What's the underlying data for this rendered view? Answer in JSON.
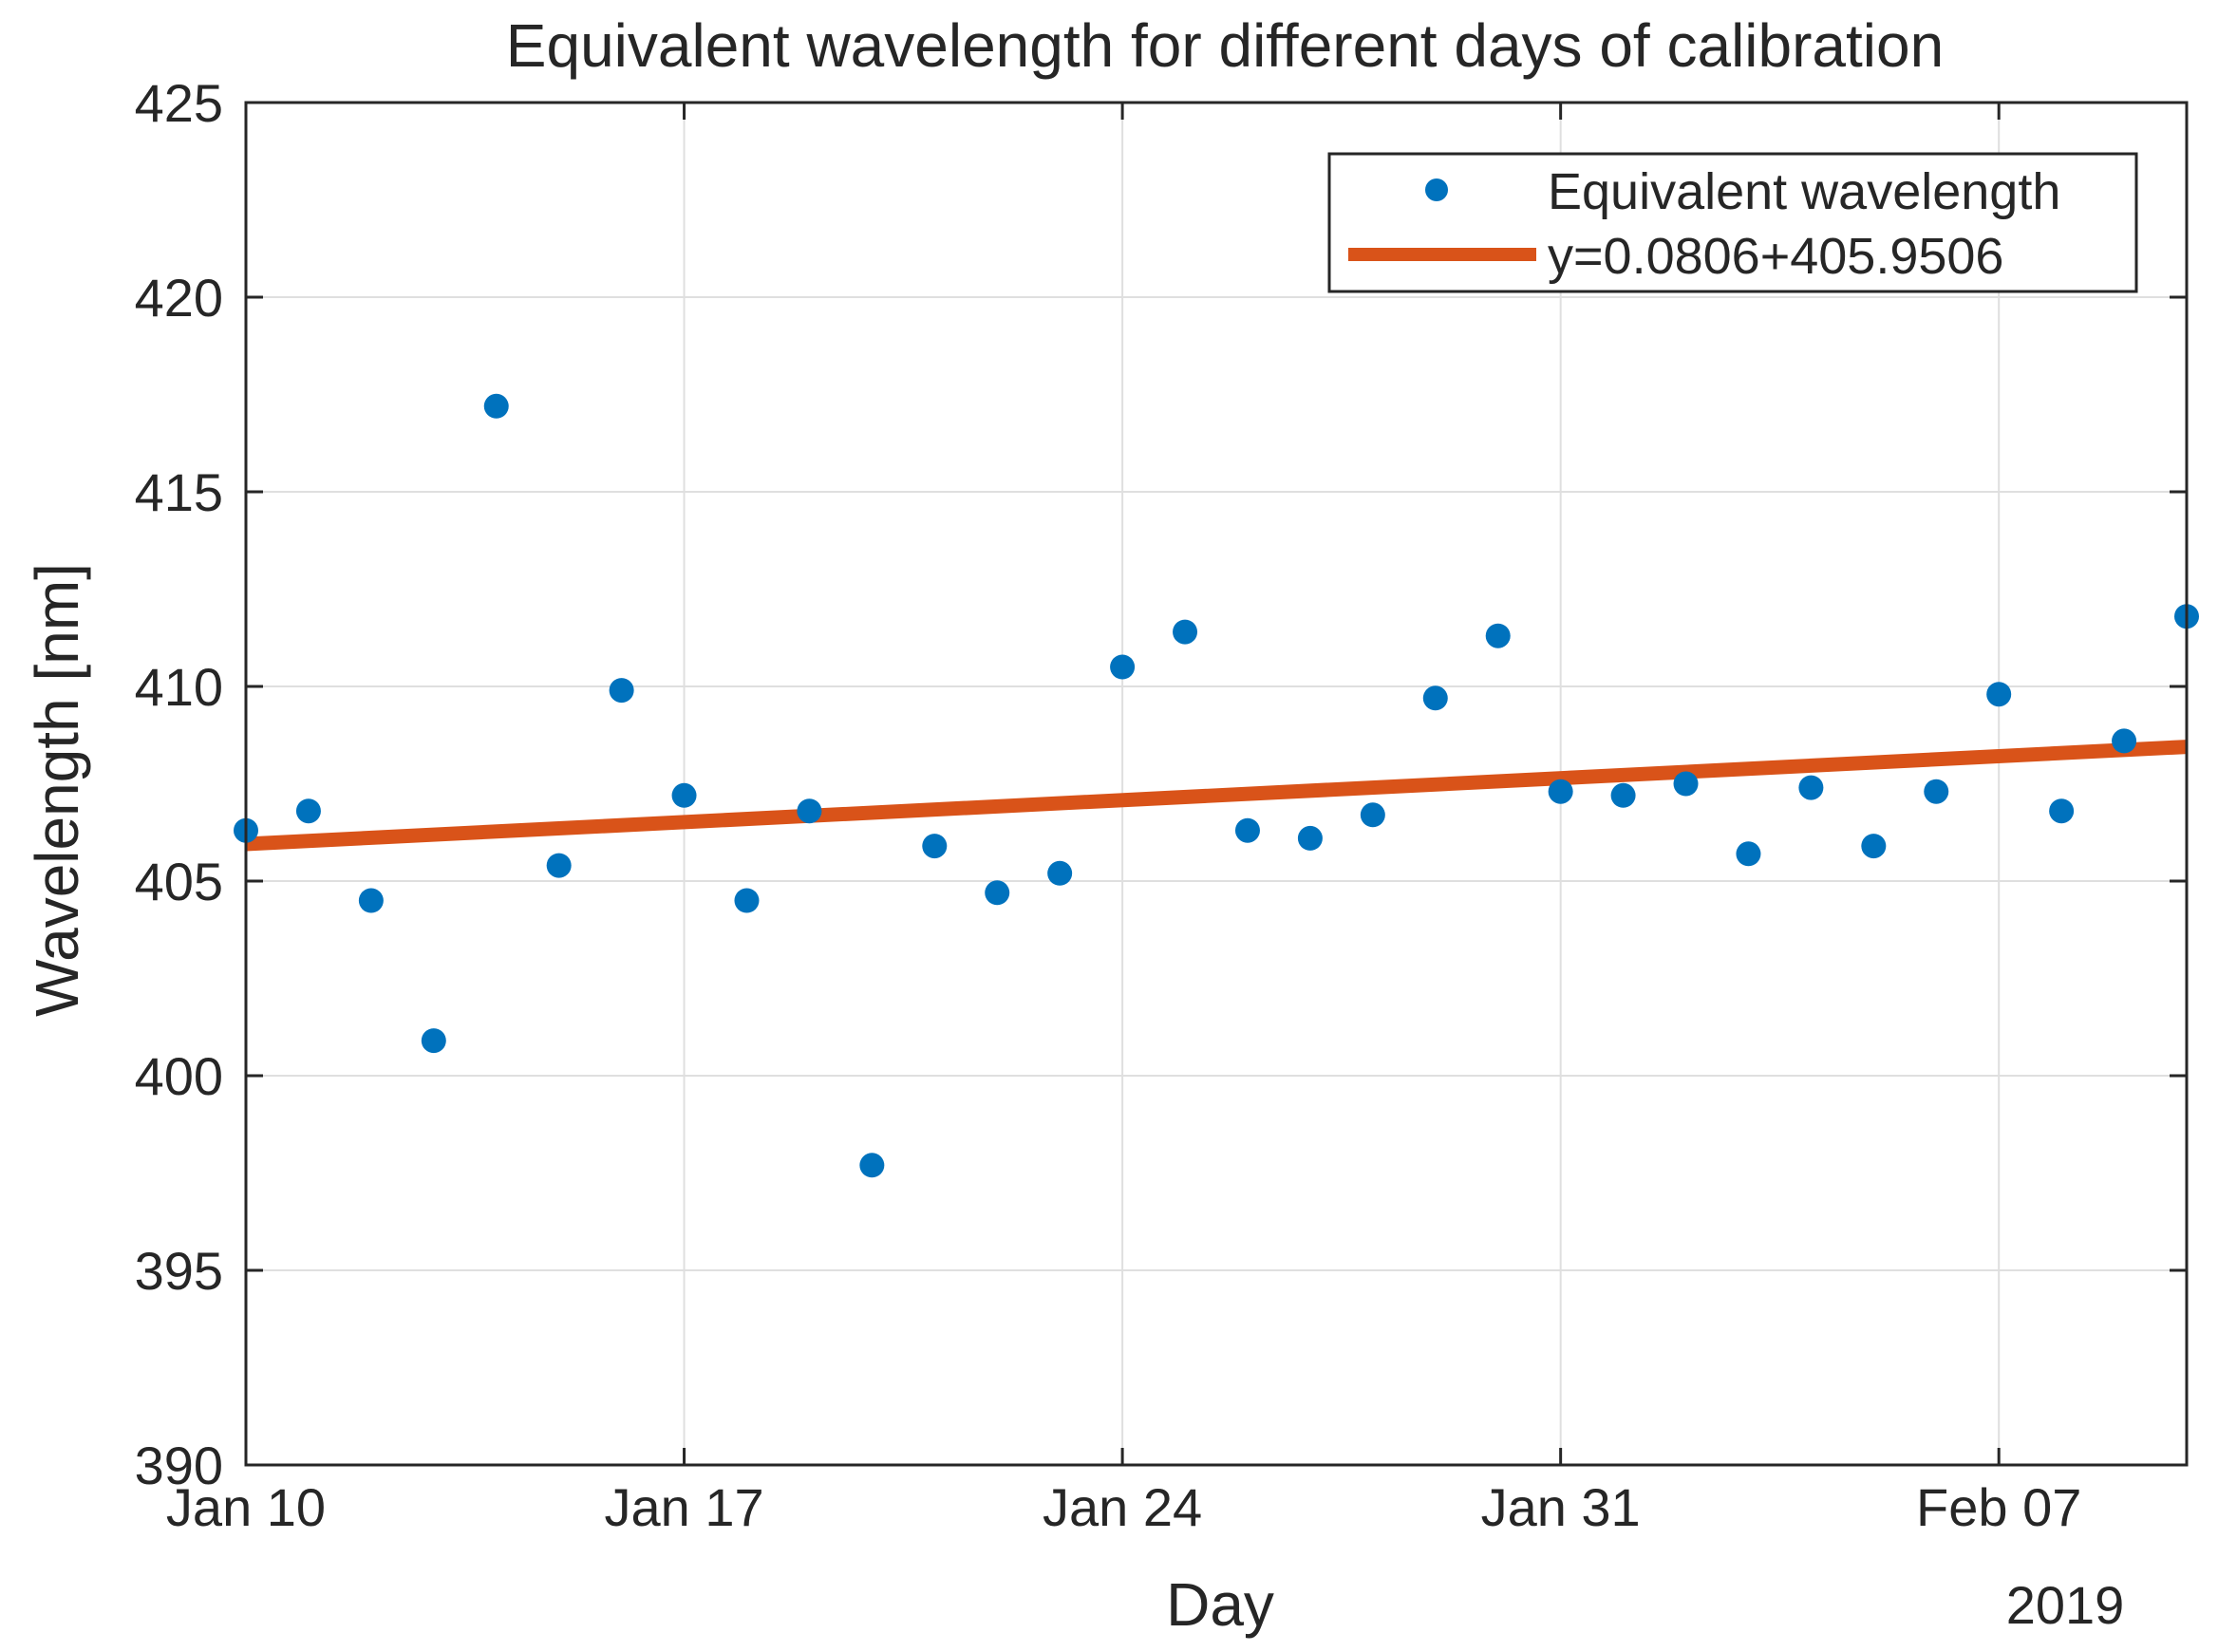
{
  "chart_data": {
    "type": "scatter",
    "title": "Equivalent wavelength for different days of calibration",
    "xlabel": "Day",
    "ylabel": "Wavelength [nm]",
    "x_year_label": "2019",
    "x_range_days": [
      0,
      31
    ],
    "ylim": [
      390,
      425
    ],
    "y_ticks": [
      390,
      395,
      400,
      405,
      410,
      415,
      420,
      425
    ],
    "x_ticks": [
      {
        "day": 0,
        "label": "Jan 10"
      },
      {
        "day": 7,
        "label": "Jan 17"
      },
      {
        "day": 14,
        "label": "Jan 24"
      },
      {
        "day": 21,
        "label": "Jan 31"
      },
      {
        "day": 28,
        "label": "Feb 07"
      }
    ],
    "grid": true,
    "legend_position": "top-right",
    "series": [
      {
        "name": "Equivalent wavelength",
        "kind": "points",
        "color": "#0072BD",
        "x": [
          0,
          1,
          2,
          3,
          4,
          5,
          6,
          7,
          8,
          9,
          10,
          11,
          12,
          13,
          14,
          15,
          16,
          17,
          18,
          19,
          20,
          21,
          22,
          23,
          24,
          25,
          26,
          27,
          28,
          29,
          30,
          31
        ],
        "y": [
          406.3,
          406.8,
          404.5,
          400.9,
          417.2,
          405.4,
          409.9,
          407.2,
          404.5,
          406.8,
          397.7,
          405.9,
          404.7,
          405.2,
          410.5,
          411.4,
          406.3,
          406.1,
          406.7,
          409.7,
          411.3,
          407.3,
          407.2,
          407.5,
          405.7,
          407.4,
          405.9,
          407.3,
          409.8,
          406.8,
          408.6,
          411.8
        ]
      },
      {
        "name": "y=0.0806+405.9506",
        "kind": "line",
        "color": "#D95319",
        "slope": 0.0806,
        "intercept": 405.9506
      }
    ]
  }
}
